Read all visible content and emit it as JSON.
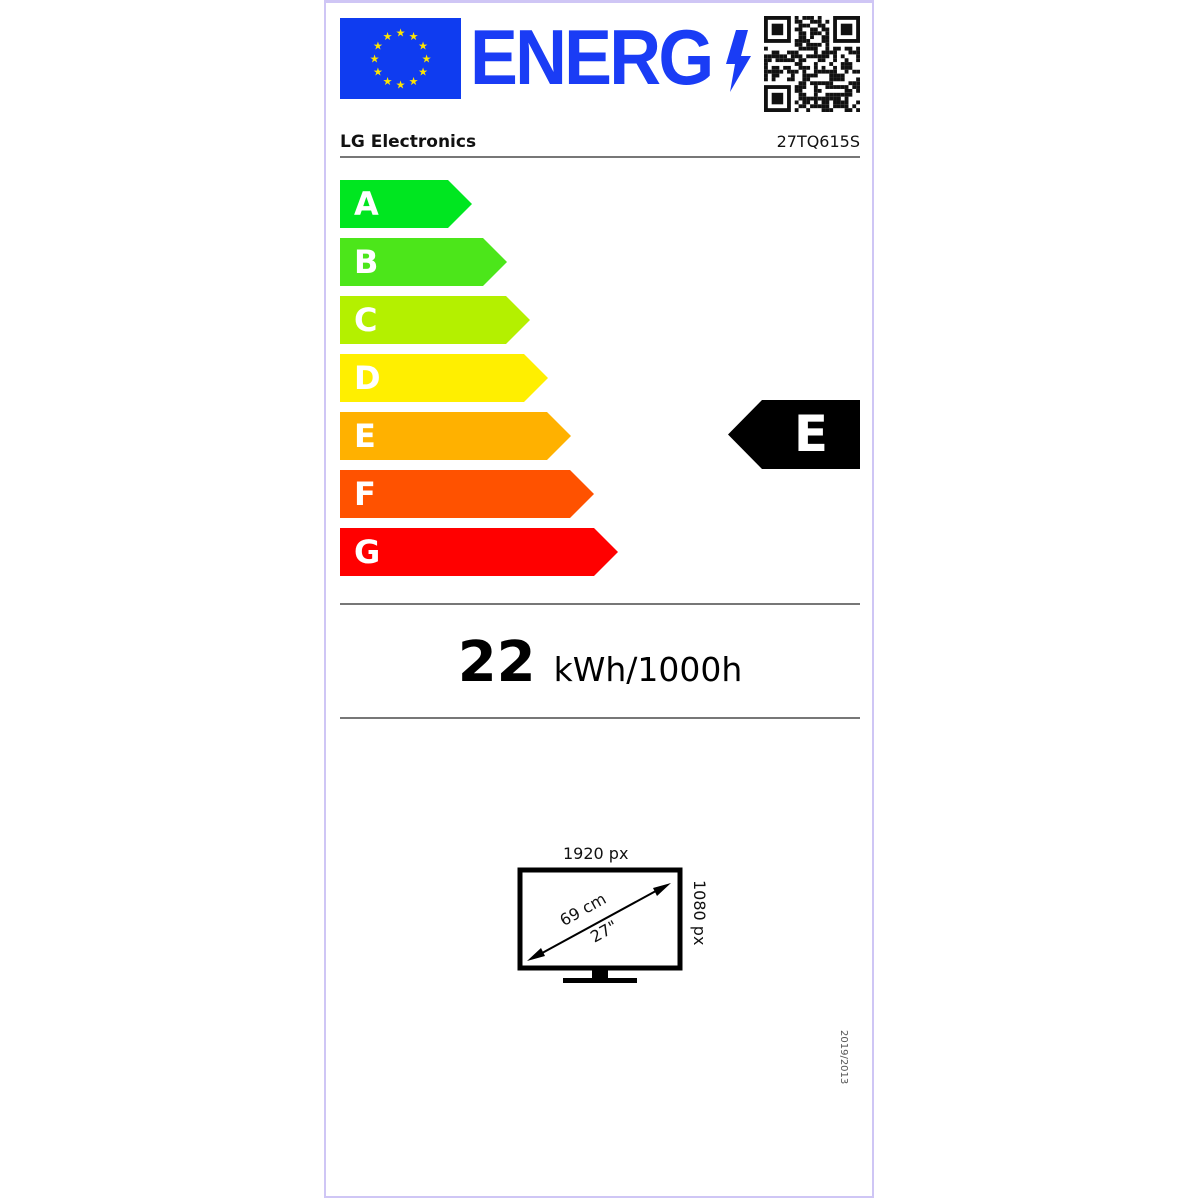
{
  "header": {
    "logo_text": "ENERG",
    "supplier": "LG Electronics",
    "model": "27TQ615S"
  },
  "scale": {
    "classes": [
      {
        "letter": "A",
        "color": "#00e620"
      },
      {
        "letter": "B",
        "color": "#4ce61a"
      },
      {
        "letter": "C",
        "color": "#b4f000"
      },
      {
        "letter": "D",
        "color": "#ffef00"
      },
      {
        "letter": "E",
        "color": "#ffb100"
      },
      {
        "letter": "F",
        "color": "#ff5200"
      },
      {
        "letter": "G",
        "color": "#ff0000"
      }
    ],
    "rating": "E"
  },
  "consumption": {
    "value": "22",
    "unit": "kWh/1000h"
  },
  "screen": {
    "width_px": "1920 px",
    "height_px": "1080 px",
    "diagonal_cm": "69 cm",
    "diagonal_in": "27\""
  },
  "regulation": "2019/2013",
  "colors": {
    "eu_blue": "#0f3cf0",
    "star_yellow": "#ffe600",
    "border": "#cfc6f5"
  }
}
